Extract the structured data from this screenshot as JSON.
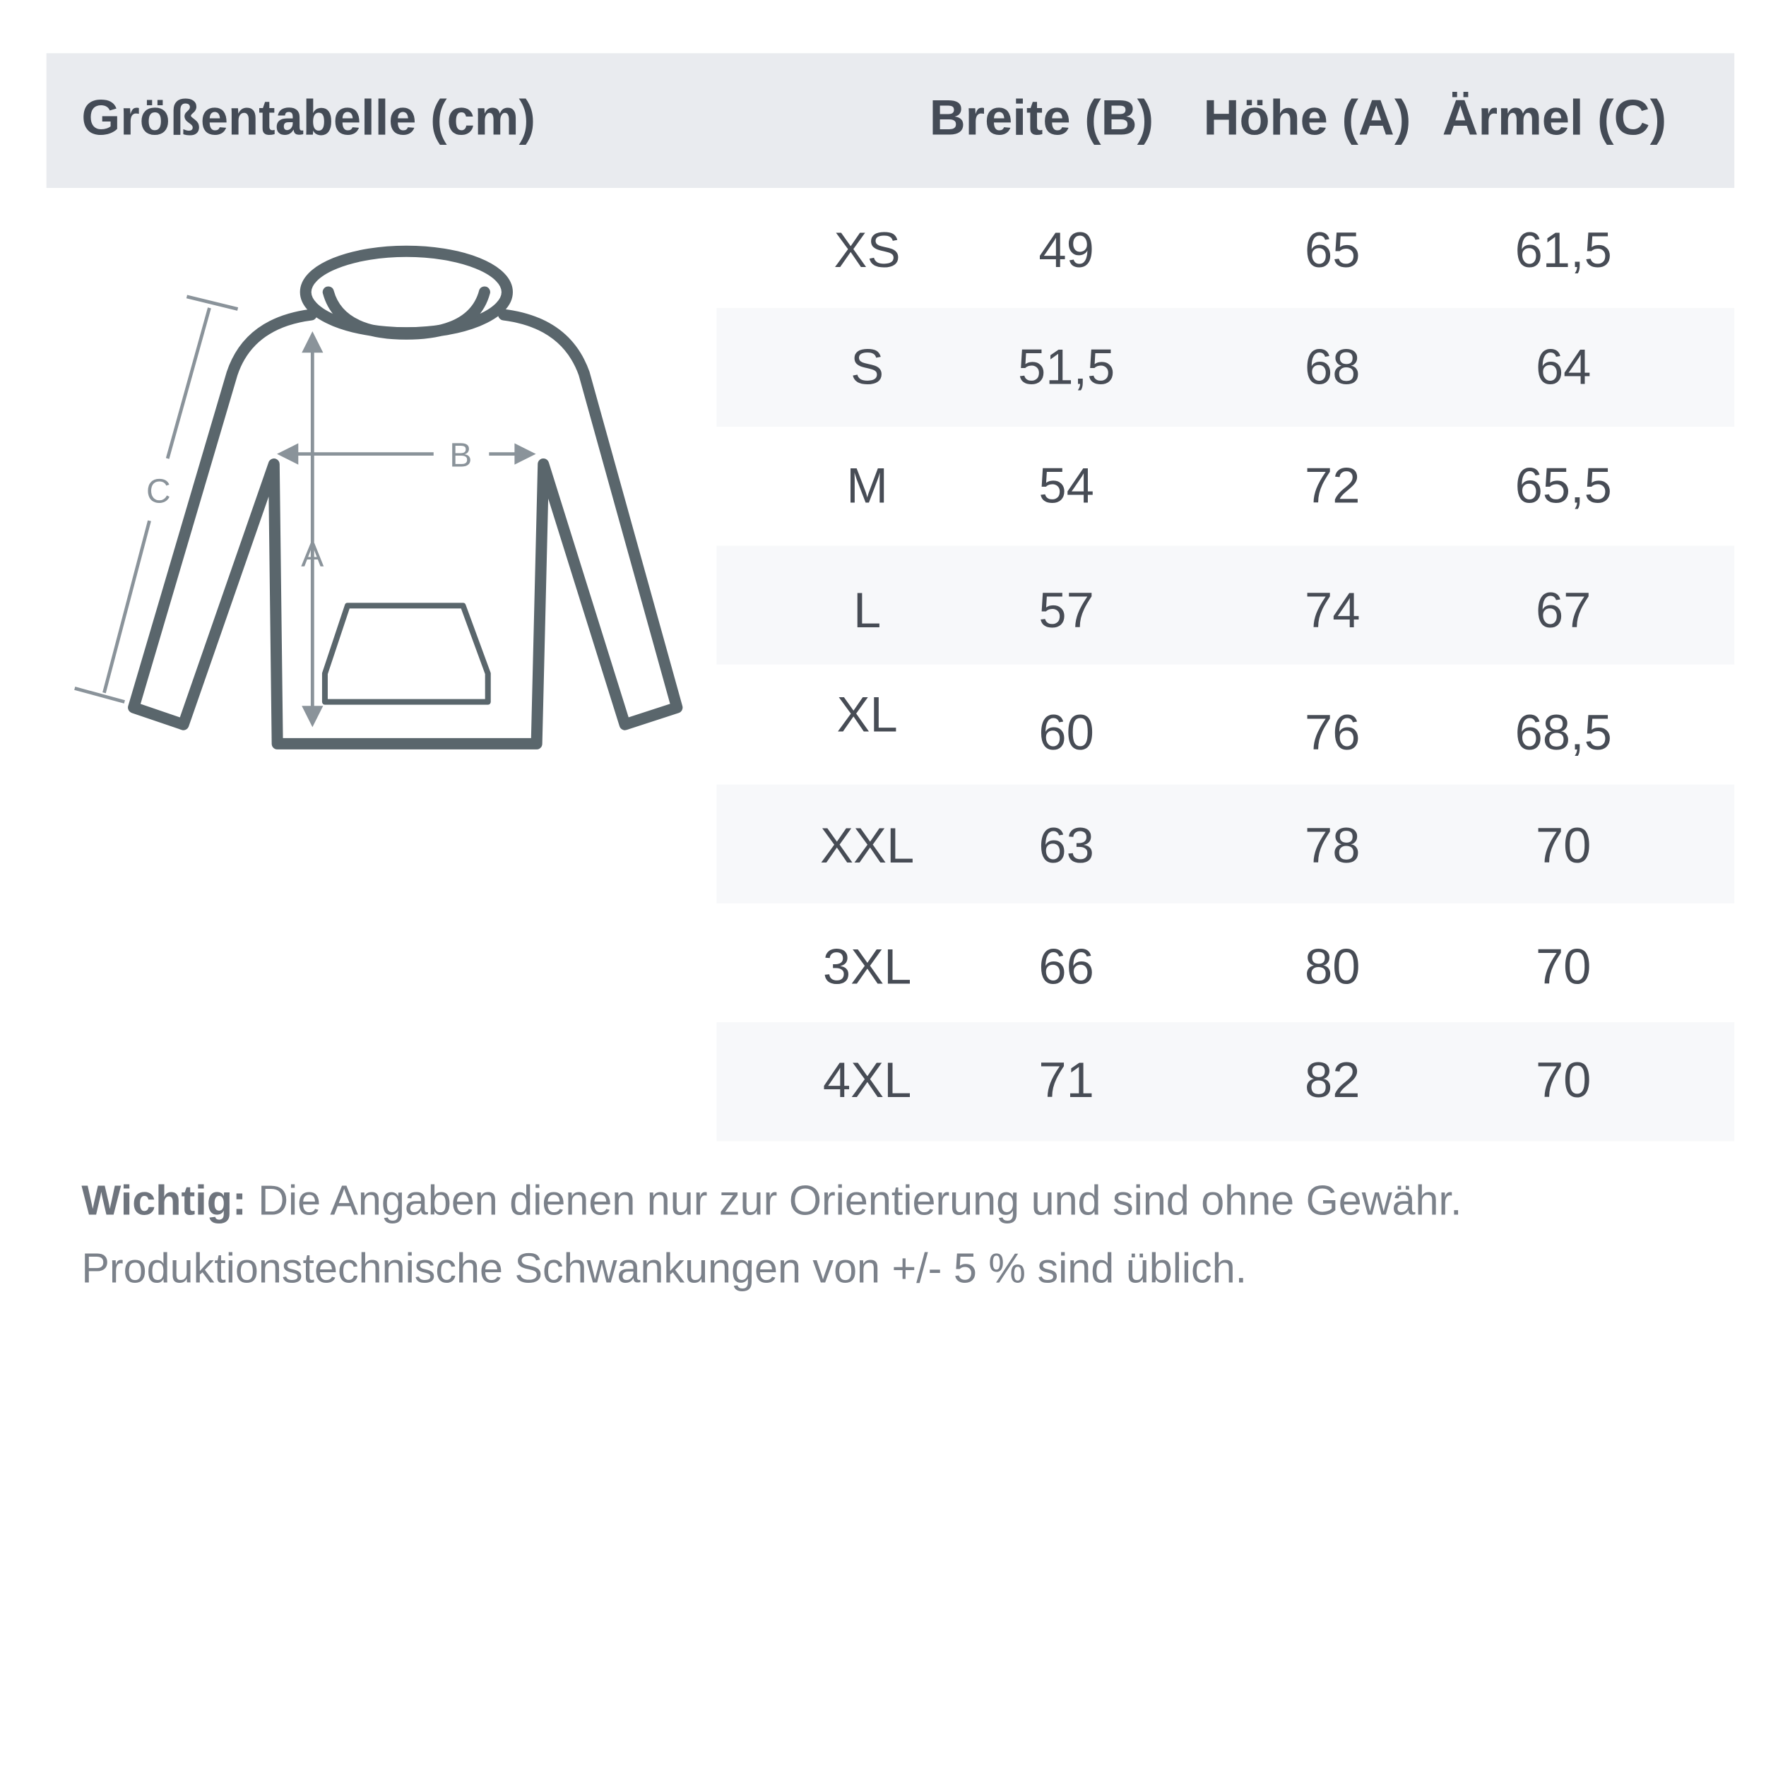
{
  "header": {
    "title": "Größentabelle (cm)",
    "col_width": "Breite (B)",
    "col_height": "Höhe (A)",
    "col_sleeve": "Ärmel (C)"
  },
  "diagram": {
    "label_a": "A",
    "label_b": "B",
    "label_c": "C",
    "stroke_color": "#5a666c",
    "arrow_color": "#8a939a"
  },
  "rows": [
    {
      "size": "XS",
      "width": "49",
      "height": "65",
      "sleeve": "61,5"
    },
    {
      "size": "S",
      "width": "51,5",
      "height": "68",
      "sleeve": "64"
    },
    {
      "size": "M",
      "width": "54",
      "height": "72",
      "sleeve": "65,5"
    },
    {
      "size": "L",
      "width": "57",
      "height": "74",
      "sleeve": "67"
    },
    {
      "size": "XL",
      "width": "60",
      "height": "76",
      "sleeve": "68,5"
    },
    {
      "size": "XXL",
      "width": "63",
      "height": "78",
      "sleeve": "70"
    },
    {
      "size": "3XL",
      "width": "66",
      "height": "80",
      "sleeve": "70"
    },
    {
      "size": "4XL",
      "width": "71",
      "height": "82",
      "sleeve": "70"
    }
  ],
  "note": {
    "bold": "Wichtig:",
    "line1": " Die Angaben dienen nur zur Orientierung und sind ohne Gewähr.",
    "line2": "Produktionstechnische Schwankungen von +/- 5 % sind üblich."
  }
}
